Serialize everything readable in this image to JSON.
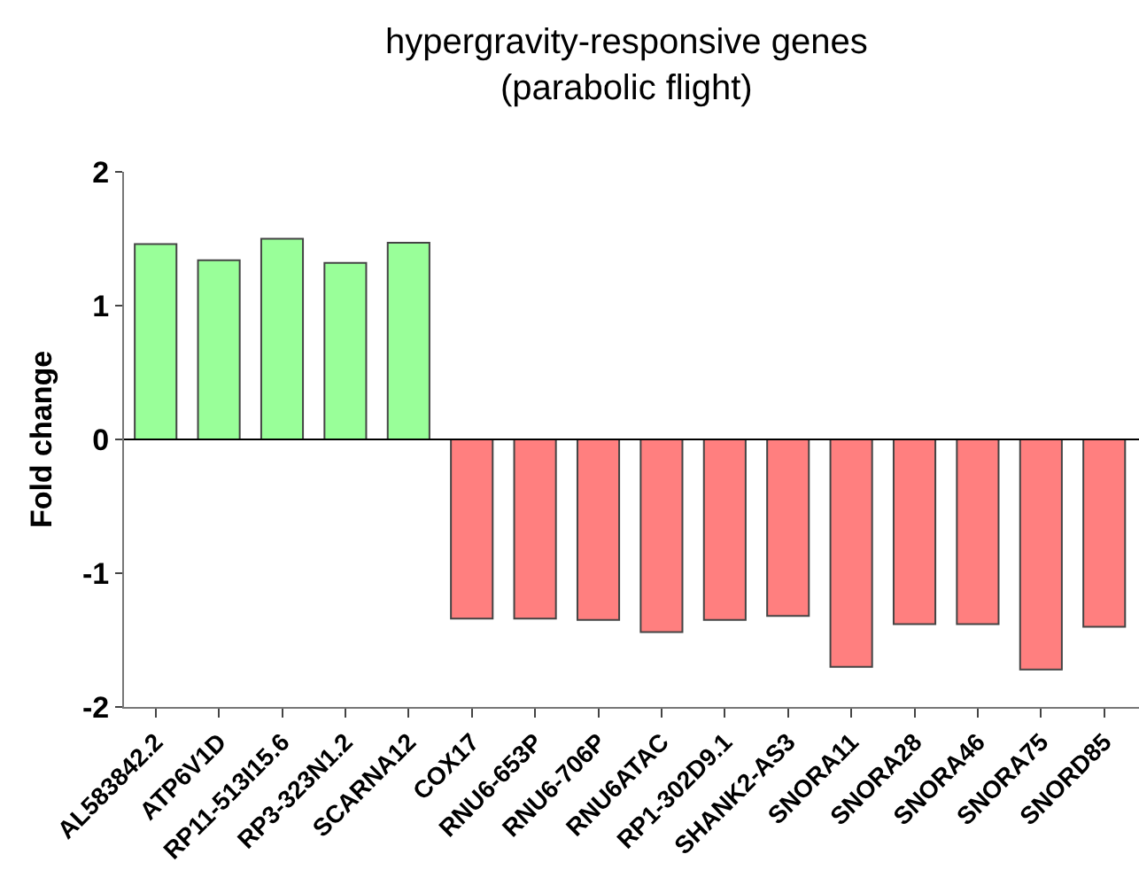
{
  "chart_data": {
    "type": "bar",
    "title": "hypergravity-responsive genes\n(parabolic flight)",
    "ylabel": "Fold change",
    "categories": [
      "AL583842.2",
      "ATP6V1D",
      "RP11-513I15.6",
      "RP3-323N1.2",
      "SCARNA12",
      "COX17",
      "RNU6-653P",
      "RNU6-706P",
      "RNU6ATAC",
      "RP1-302D9.1",
      "SHANK2-AS3",
      "SNORA11",
      "SNORA28",
      "SNORA46",
      "SNORA75",
      "SNORD85"
    ],
    "values": [
      1.46,
      1.34,
      1.5,
      1.32,
      1.47,
      -1.34,
      -1.34,
      -1.35,
      -1.44,
      -1.35,
      -1.32,
      -1.7,
      -1.38,
      -1.38,
      -1.72,
      -1.4
    ],
    "colors": [
      "#99ff99",
      "#99ff99",
      "#99ff99",
      "#99ff99",
      "#99ff99",
      "#ff7f7f",
      "#ff7f7f",
      "#ff7f7f",
      "#ff7f7f",
      "#ff7f7f",
      "#ff7f7f",
      "#ff7f7f",
      "#ff7f7f",
      "#ff7f7f",
      "#ff7f7f",
      "#ff7f7f"
    ],
    "ylim": [
      -2,
      2
    ],
    "yticks": [
      -2,
      -1,
      0,
      1,
      2
    ],
    "ref_lines": [
      {
        "axis": "y",
        "value": 0,
        "color": "#000000"
      }
    ]
  }
}
